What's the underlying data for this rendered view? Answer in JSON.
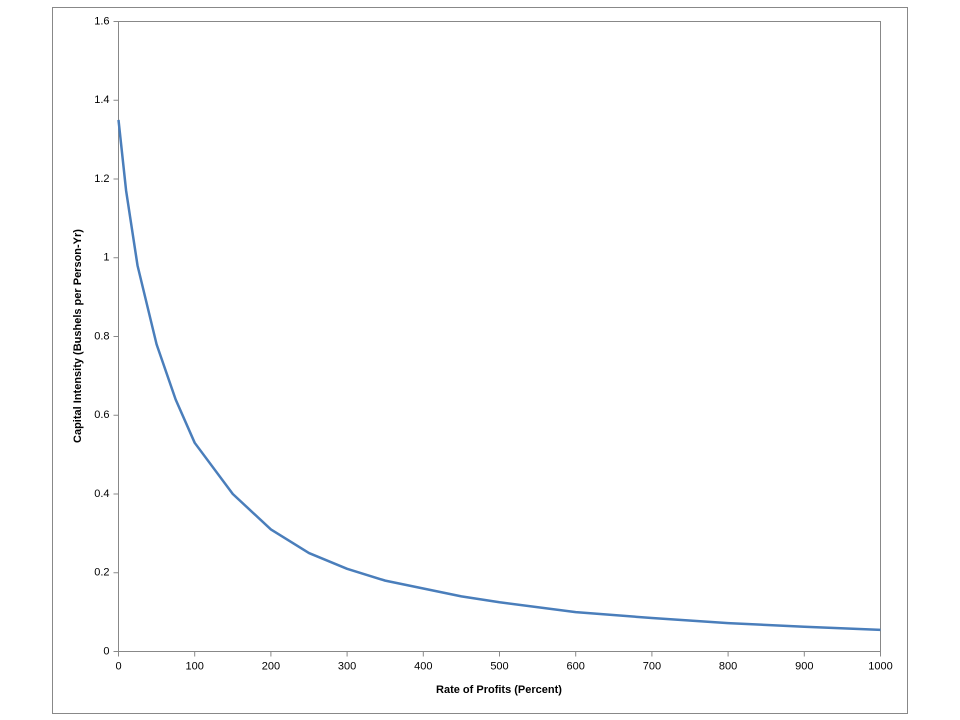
{
  "chart_data": {
    "type": "line",
    "x_label": "Rate of Profits (Percent)",
    "y_label": "Capital Intensity (Bushels per Person-Yr)",
    "x": [
      0,
      10,
      25,
      50,
      75,
      100,
      150,
      200,
      250,
      300,
      350,
      400,
      450,
      500,
      600,
      700,
      800,
      900,
      1000
    ],
    "values": [
      1.35,
      1.17,
      0.98,
      0.78,
      0.64,
      0.53,
      0.4,
      0.31,
      0.25,
      0.21,
      0.18,
      0.16,
      0.14,
      0.125,
      0.1,
      0.085,
      0.072,
      0.063,
      0.055
    ],
    "color": "#4a7ebb",
    "xlim": [
      0,
      1000
    ],
    "xticks": [
      0,
      100,
      200,
      300,
      400,
      500,
      600,
      700,
      800,
      900,
      1000
    ],
    "ylim": [
      0,
      1.6
    ],
    "yticks": [
      0,
      0.2,
      0.4,
      0.6,
      0.8,
      1,
      1.2,
      1.4,
      1.6
    ]
  }
}
